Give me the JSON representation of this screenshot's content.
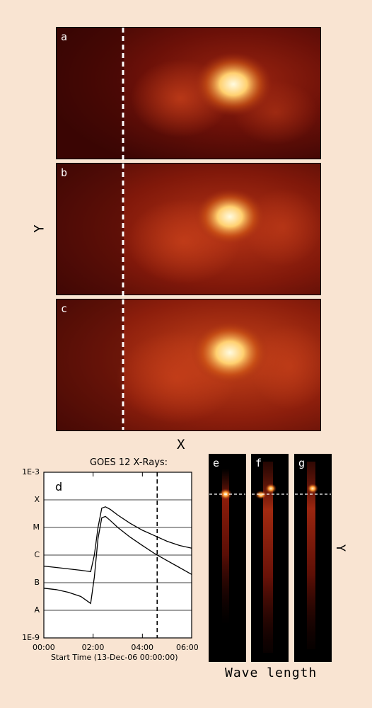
{
  "panels": [
    {
      "label": "a"
    },
    {
      "label": "b"
    },
    {
      "label": "c"
    }
  ],
  "image_axes": {
    "x": "X",
    "y": "Y"
  },
  "spectra": [
    {
      "label": "e"
    },
    {
      "label": "f"
    },
    {
      "label": "g"
    }
  ],
  "spectra_axes": {
    "x": "Wave length",
    "y": "Y"
  },
  "chart_data": {
    "type": "line",
    "title": "GOES 12 X-Rays:",
    "panel_label": "d",
    "xlabel": "Start Time (13-Dec-06 00:00:00)",
    "x_ticks": [
      "00:00",
      "02:00",
      "04:00",
      "06:00"
    ],
    "y_ticks": [
      "1E-3",
      "X",
      "M",
      "C",
      "B",
      "A",
      "1E-9"
    ],
    "log_y": true,
    "grid": "horizontal at class levels",
    "vertical_marker_hours": 4.6,
    "series": [
      {
        "x": [
          0,
          0.5,
          1.0,
          1.5,
          1.9,
          2.05,
          2.2,
          2.35,
          2.5,
          2.7,
          3.0,
          3.5,
          4.0,
          4.5,
          5.0,
          5.5,
          6.0
        ],
        "y": [
          -6.4,
          -6.45,
          -6.5,
          -6.55,
          -6.6,
          -6.0,
          -5.0,
          -4.3,
          -4.25,
          -4.35,
          -4.55,
          -4.85,
          -5.1,
          -5.3,
          -5.5,
          -5.65,
          -5.75
        ]
      },
      {
        "x": [
          0,
          0.5,
          1.0,
          1.5,
          1.9,
          2.05,
          2.2,
          2.35,
          2.5,
          2.7,
          3.0,
          3.5,
          4.0,
          4.5,
          5.0,
          5.5,
          6.0
        ],
        "y": [
          -7.2,
          -7.25,
          -7.35,
          -7.5,
          -7.75,
          -6.8,
          -5.4,
          -4.65,
          -4.6,
          -4.75,
          -5.0,
          -5.35,
          -5.65,
          -5.95,
          -6.2,
          -6.45,
          -6.7
        ]
      }
    ]
  }
}
